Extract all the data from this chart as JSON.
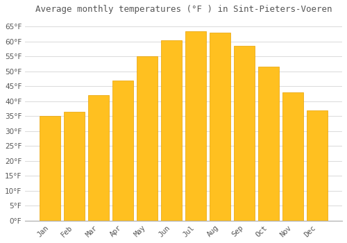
{
  "title": "Average monthly temperatures (°F ) in Sint-Pieters-Voeren",
  "months": [
    "Jan",
    "Feb",
    "Mar",
    "Apr",
    "May",
    "Jun",
    "Jul",
    "Aug",
    "Sep",
    "Oct",
    "Nov",
    "Dec"
  ],
  "values": [
    35,
    36.5,
    42,
    47,
    55,
    60.5,
    63.5,
    63,
    58.5,
    51.5,
    43,
    37
  ],
  "bar_color_top": "#FFC020",
  "bar_color_bottom": "#FFB000",
  "bar_edge_color": "#E8A000",
  "background_color": "#FFFFFF",
  "grid_color": "#DDDDDD",
  "text_color": "#555555",
  "ylim": [
    0,
    68
  ],
  "yticks": [
    0,
    5,
    10,
    15,
    20,
    25,
    30,
    35,
    40,
    45,
    50,
    55,
    60,
    65
  ],
  "title_fontsize": 9,
  "tick_fontsize": 7.5,
  "bar_width": 0.85
}
